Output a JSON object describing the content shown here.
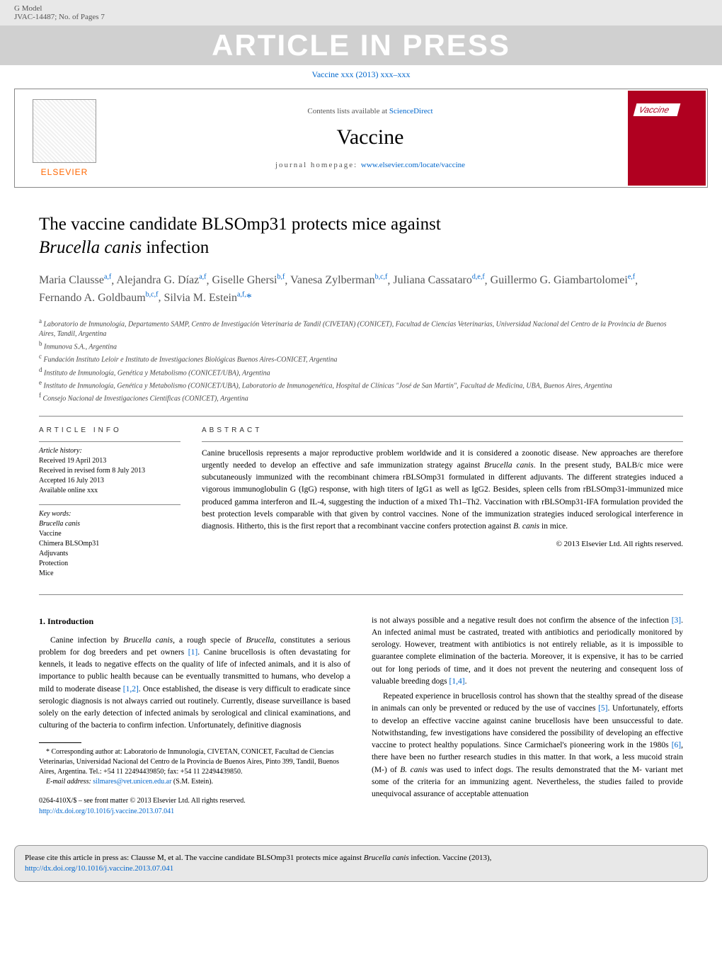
{
  "header": {
    "gmodel": "G Model",
    "jvac": "JVAC-14487;   No. of Pages 7",
    "aip": "ARTICLE IN PRESS",
    "ref": "Vaccine xxx (2013) xxx–xxx"
  },
  "banner": {
    "elsevier": "ELSEVIER",
    "contents_prefix": "Contents lists available at ",
    "contents_link": "ScienceDirect",
    "journal": "Vaccine",
    "homepage_prefix": "journal homepage: ",
    "homepage_link": "www.elsevier.com/locate/vaccine",
    "cover_label": "Vaccine"
  },
  "title": {
    "line1": "The vaccine candidate BLSOmp31 protects mice against",
    "species": "Brucella canis",
    "line2": " infection"
  },
  "authors": [
    {
      "name": "Maria Clausse",
      "aff": "a,f"
    },
    {
      "name": "Alejandra G. Díaz",
      "aff": "a,f"
    },
    {
      "name": "Giselle Ghersi",
      "aff": "b,f"
    },
    {
      "name": "Vanesa Zylberman",
      "aff": "b,c,f"
    },
    {
      "name": "Juliana Cassataro",
      "aff": "d,e,f"
    },
    {
      "name": "Guillermo G. Giambartolomei",
      "aff": "e,f"
    },
    {
      "name": "Fernando A. Goldbaum",
      "aff": "b,c,f"
    },
    {
      "name": "Silvia M. Estein",
      "aff": "a,f,",
      "corr": true
    }
  ],
  "affiliations": [
    {
      "k": "a",
      "t": "Laboratorio de Inmunología, Departamento SAMP, Centro de Investigación Veterinaria de Tandil (CIVETAN) (CONICET), Facultad de Ciencias Veterinarias, Universidad Nacional del Centro de la Provincia de Buenos Aires, Tandil, Argentina"
    },
    {
      "k": "b",
      "t": "Inmunova S.A., Argentina"
    },
    {
      "k": "c",
      "t": "Fundación Instituto Leloir e Instituto de Investigaciones Biológicas Buenos Aires-CONICET, Argentina"
    },
    {
      "k": "d",
      "t": "Instituto de Inmunología, Genética y Metabolismo (CONICET/UBA), Argentina"
    },
    {
      "k": "e",
      "t": "Instituto de Inmunología, Genética y Metabolismo (CONICET/UBA), Laboratorio de Inmunogenética, Hospital de Clínicas \"José de San Martín\", Facultad de Medicina, UBA, Buenos Aires, Argentina"
    },
    {
      "k": "f",
      "t": "Consejo Nacional de Investigaciones Científicas (CONICET), Argentina"
    }
  ],
  "info": {
    "header": "ARTICLE INFO",
    "history_label": "Article history:",
    "history": [
      "Received 19 April 2013",
      "Received in revised form 8 July 2013",
      "Accepted 16 July 2013",
      "Available online xxx"
    ],
    "keywords_label": "Key words:",
    "keywords": [
      "Brucella canis",
      "Vaccine",
      "Chimera BLSOmp31",
      "Adjuvants",
      "Protection",
      "Mice"
    ]
  },
  "abstract": {
    "header": "ABSTRACT",
    "text_parts": [
      "Canine brucellosis represents a major reproductive problem worldwide and it is considered a zoonotic disease. New approaches are therefore urgently needed to develop an effective and safe immunization strategy against ",
      "Brucella canis",
      ". In the present study, BALB/c mice were subcutaneously immunized with the recombinant chimera rBLSOmp31 formulated in different adjuvants. The different strategies induced a vigorous immunoglobulin G (IgG) response, with high titers of IgG1 as well as IgG2. Besides, spleen cells from rBLSOmp31-immunized mice produced gamma interferon and IL-4, suggesting the induction of a mixed Th1–Th2. Vaccination with rBLSOmp31-IFA formulation provided the best protection levels comparable with that given by control vaccines. None of the immunization strategies induced serological interference in diagnosis. Hitherto, this is the first report that a recombinant vaccine confers protection against ",
      "B. canis",
      " in mice."
    ],
    "copyright": "© 2013 Elsevier Ltd. All rights reserved."
  },
  "intro": {
    "heading": "1.  Introduction",
    "col1": [
      {
        "pre": "Canine infection by ",
        "it": "Brucella canis",
        "post": ", a rough specie of ",
        "it2": "Brucella",
        "post2": ", constitutes a serious problem for dog breeders and pet owners ",
        "ref": "[1]",
        "tail": ". Canine brucellosis is often devastating for kennels, it leads to negative effects on the quality of life of infected animals, and it is also of importance to public health because can be eventually transmitted to humans, who develop a mild to moderate disease ",
        "ref2": "[1,2]",
        "tail2": ". Once established, the disease is very difficult to eradicate since serologic diagnosis is not always carried out routinely. Currently, disease surveillance is based solely on the early detection of infected animals by serological and clinical examinations, and culturing of the bacteria to confirm infection. Unfortunately, definitive diagnosis"
      }
    ],
    "col2_p1": {
      "pre": "is not always possible and a negative result does not confirm the absence of the infection ",
      "ref": "[3]",
      "mid": ". An infected animal must be castrated, treated with antibiotics and periodically monitored by serology. However, treatment with antibiotics is not entirely reliable, as it is impossible to guarantee complete elimination of the bacteria. Moreover, it is expensive, it has to be carried out for long periods of time, and it does not prevent the neutering and consequent loss of valuable breeding dogs ",
      "ref2": "[1,4]",
      "tail": "."
    },
    "col2_p2": {
      "pre": "Repeated experience in brucellosis control has shown that the stealthy spread of the disease in animals can only be prevented or reduced by the use of vaccines ",
      "ref": "[5]",
      "mid": ". Unfortunately, efforts to develop an effective vaccine against canine brucellosis have been unsuccessful to date. Notwithstanding, few investigations have considered the possibility of developing an effective vaccine to protect healthy populations. Since Carmichael's pioneering work in the 1980s ",
      "ref2": "[6]",
      "mid2": ", there have been no further research studies in this matter. In that work, a less mucoid strain (M-) of ",
      "it": "B. canis",
      "tail": " was used to infect dogs. The results demonstrated that the M- variant met some of the criteria for an immunizing agent. Nevertheless, the studies failed to provide unequivocal assurance of acceptable attenuation"
    }
  },
  "footnote": {
    "corr": "* Corresponding author at: Laboratorio de Inmunología, CIVETAN, CONICET, Facultad de Ciencias Veterinarias, Universidad Nacional del Centro de la Provincia de Buenos Aires, Pinto 399, Tandil, Buenos Aires, Argentina. Tel.: +54 11 22494439850; fax: +54 11 22494439850.",
    "email_label": "E-mail address: ",
    "email": "silmares@vet.unicen.edu.ar",
    "email_tail": " (S.M. Estein)."
  },
  "front_matter": {
    "line1": "0264-410X/$ – see front matter © 2013 Elsevier Ltd. All rights reserved.",
    "doi": "http://dx.doi.org/10.1016/j.vaccine.2013.07.041"
  },
  "citation": {
    "pre": "Please cite this article in press as: Clausse M, et al. The vaccine candidate BLSOmp31 protects mice against ",
    "it": "Brucella canis",
    "post": " infection. Vaccine (2013), ",
    "link": "http://dx.doi.org/10.1016/j.vaccine.2013.07.041"
  },
  "colors": {
    "link": "#0066cc",
    "elsevier_orange": "#ff6600",
    "cover_red": "#b00020",
    "header_gray": "#e8e8e8",
    "aip_bg": "#d0d0d0"
  }
}
